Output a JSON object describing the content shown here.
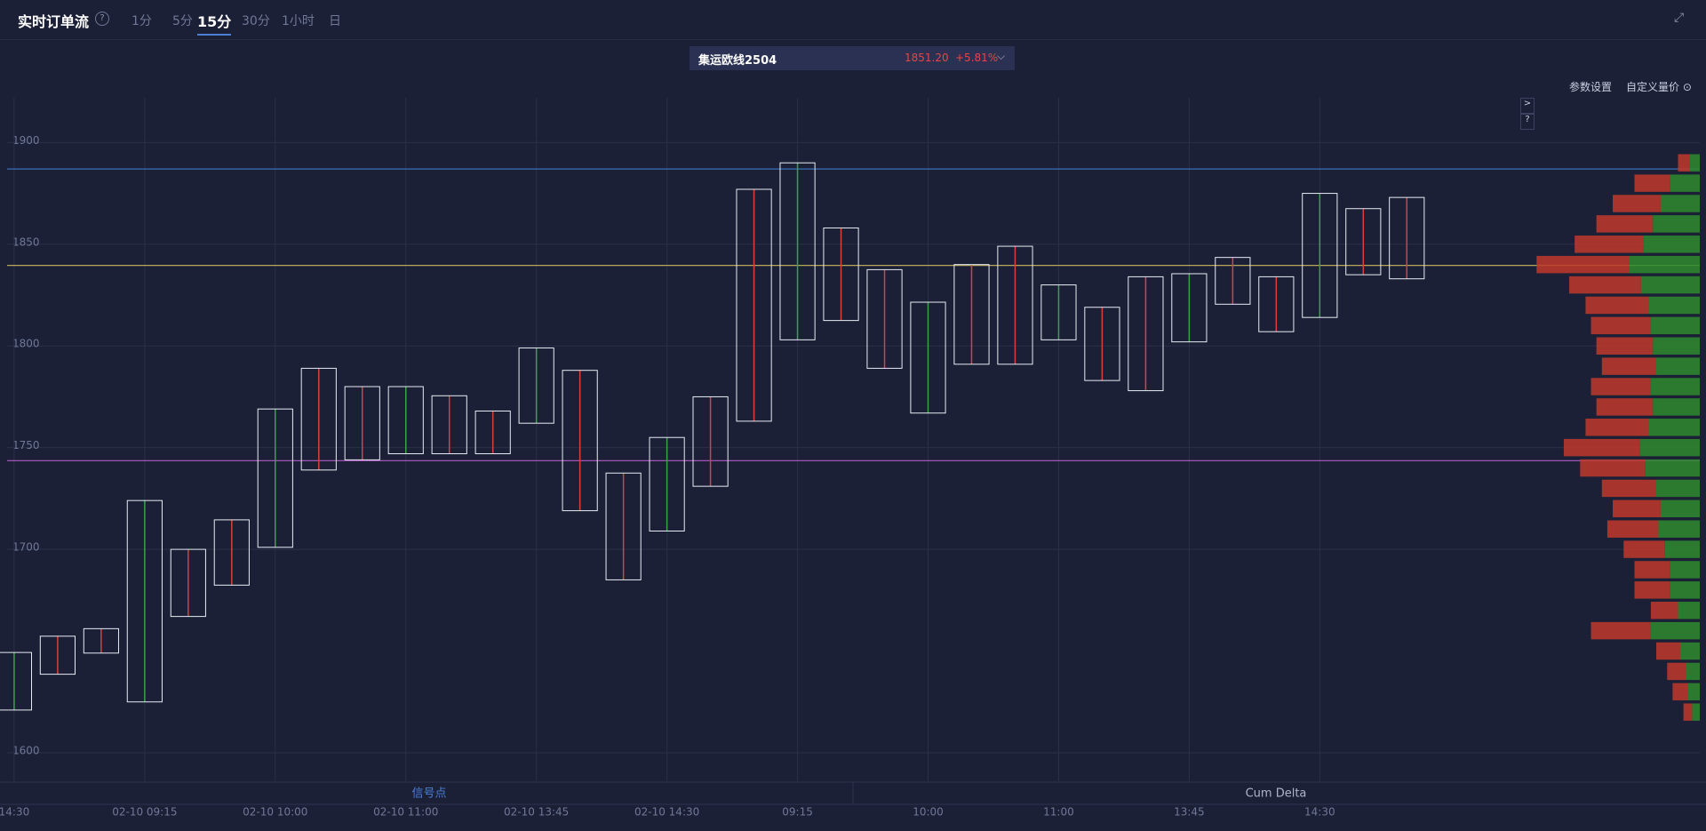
{
  "header": {
    "title": "实时订单流",
    "help": "?",
    "tabs": [
      "1分",
      "5分",
      "15分",
      "30分",
      "1小时",
      "日"
    ],
    "active_tab": 2
  },
  "instrument": {
    "name": "集运欧线2504",
    "price": "1851.20",
    "change": "+5.81%"
  },
  "toolbar": {
    "settings": "参数设置",
    "custom": "自定义量价"
  },
  "side_buttons": [
    ">",
    "?"
  ],
  "panels": [
    "信号点",
    "Cum Delta"
  ],
  "chart_data": {
    "type": "footprint",
    "categories": [
      "14:30",
      null,
      null,
      "02-10 09:15",
      null,
      null,
      "02-10 10:00",
      null,
      null,
      "02-10 11:00",
      null,
      null,
      "02-10 13:45",
      null,
      null,
      "02-10 14:30",
      null,
      null,
      "09:15",
      null,
      null,
      "10:00",
      null,
      null,
      "11:00",
      null,
      null,
      "13:45",
      null,
      null,
      "14:30",
      null,
      null
    ],
    "high": [
      1649.3,
      1657.3,
      1661,
      1724,
      1700,
      1714.5,
      1769,
      1789,
      1780,
      1780,
      1775.5,
      1768,
      1799,
      1788,
      1737.5,
      1755,
      1775,
      1877,
      1890,
      1858,
      1837.5,
      1821.5,
      1840,
      1849,
      1830,
      1819,
      1834,
      1835.5,
      1843.5,
      1834,
      1875,
      1867.5,
      1873
    ],
    "low": [
      1621,
      1638.6,
      1649,
      1625,
      1667,
      1682.4,
      1701,
      1739,
      1744,
      1747,
      1747,
      1747,
      1762,
      1719,
      1685,
      1709,
      1731,
      1763,
      1803,
      1812.5,
      1789,
      1767,
      1791,
      1791,
      1803,
      1783,
      1778,
      1802,
      1820.5,
      1807,
      1814,
      1835,
      1833
    ],
    "box_color": "#e8ecf4",
    "ylim": [
      1586,
      1922
    ],
    "yticks": [
      1600,
      1700,
      1750,
      1800,
      1850,
      1900
    ],
    "grid": true,
    "levels": [
      {
        "value": 1887,
        "color": "#3d6db5"
      },
      {
        "value": 1839.6,
        "color": "#b8a65a"
      },
      {
        "value": 1743.6,
        "color": "#b35cc4"
      }
    ],
    "profile": {
      "prices": [
        1620,
        1630,
        1640,
        1650,
        1660,
        1670,
        1680,
        1690,
        1700,
        1710,
        1720,
        1730,
        1740,
        1750,
        1760,
        1770,
        1780,
        1790,
        1800,
        1810,
        1820,
        1830,
        1840,
        1850,
        1860,
        1870,
        1880,
        1890
      ],
      "sell": [
        8,
        14,
        17,
        22,
        55,
        25,
        33,
        33,
        38,
        47,
        44,
        50,
        60,
        70,
        58,
        52,
        55,
        50,
        52,
        55,
        58,
        66,
        85,
        63,
        52,
        44,
        33,
        11
      ],
      "buy": [
        7,
        11,
        13,
        18,
        45,
        20,
        27,
        27,
        32,
        38,
        36,
        40,
        50,
        55,
        47,
        43,
        45,
        40,
        43,
        45,
        47,
        54,
        65,
        52,
        43,
        36,
        27,
        9
      ],
      "sell_color": "#c0392b",
      "buy_color": "#2e8b2e"
    }
  }
}
